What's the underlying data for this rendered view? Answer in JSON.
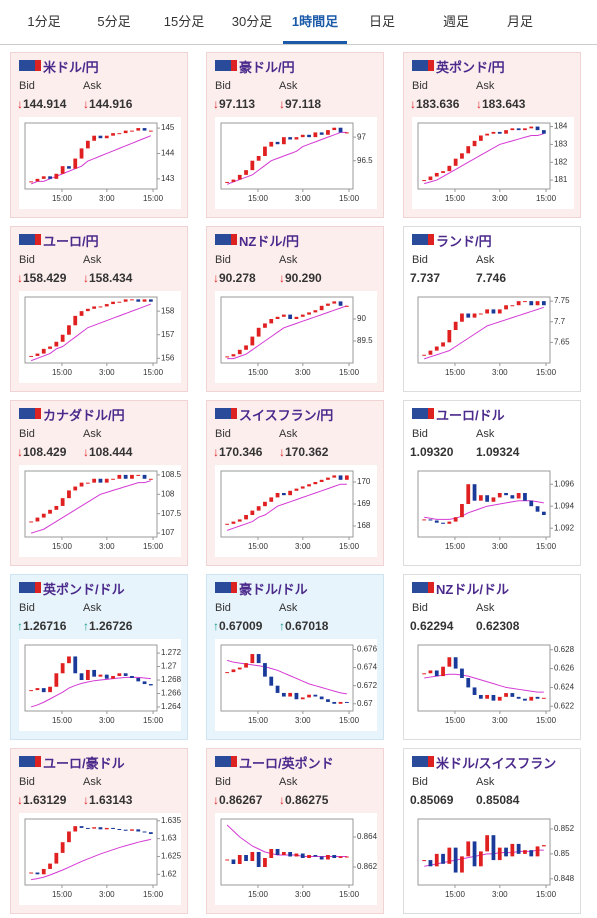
{
  "tabs": [
    "1分足",
    "5分足",
    "15分足",
    "30分足",
    "1時間足",
    "日足",
    "週足",
    "月足"
  ],
  "active_tab": 4,
  "cards": [
    {
      "title": "米ドル/円",
      "bid_label": "Bid",
      "ask_label": "Ask",
      "arrow": "↓",
      "bid": "144.914",
      "ask": "144.916",
      "chart": {
        "ylim": [
          142.6,
          145.2
        ],
        "yticks": [
          143,
          144,
          145
        ],
        "xlabels": [
          "15:00",
          "3:00",
          "15:00"
        ],
        "close": [
          142.9,
          143.0,
          143.1,
          143.0,
          143.2,
          143.5,
          143.4,
          143.8,
          144.2,
          144.5,
          144.7,
          144.6,
          144.7,
          144.8,
          144.8,
          144.9,
          144.9,
          145.0,
          144.9,
          144.9
        ],
        "ma": [
          142.8,
          142.9,
          142.9,
          143.0,
          143.1,
          143.2,
          143.3,
          143.4,
          143.5,
          143.7,
          143.8,
          143.9,
          144.0,
          144.1,
          144.2,
          144.3,
          144.4,
          144.5,
          144.6,
          144.7
        ]
      }
    },
    {
      "title": "豪ドル/円",
      "bid_label": "Bid",
      "ask_label": "Ask",
      "arrow": "↓",
      "bid": "97.113",
      "ask": "97.118",
      "chart": {
        "ylim": [
          95.9,
          97.3
        ],
        "yticks": [
          96.5,
          97
        ],
        "xlabels": [
          "15:00",
          "3:00",
          "15:00"
        ],
        "close": [
          96.05,
          96.1,
          96.2,
          96.3,
          96.5,
          96.6,
          96.8,
          96.9,
          96.85,
          97.0,
          96.95,
          97.0,
          97.05,
          97.0,
          97.1,
          97.05,
          97.15,
          97.2,
          97.1,
          97.1
        ],
        "ma": [
          96.0,
          96.05,
          96.1,
          96.15,
          96.2,
          96.3,
          96.4,
          96.5,
          96.55,
          96.6,
          96.65,
          96.7,
          96.8,
          96.85,
          96.9,
          96.95,
          97.0,
          97.05,
          97.1,
          97.1
        ]
      }
    },
    {
      "title": "英ポンド/円",
      "bid_label": "Bid",
      "ask_label": "Ask",
      "arrow": "↓",
      "bid": "183.636",
      "ask": "183.643",
      "chart": {
        "ylim": [
          180.5,
          184.2
        ],
        "yticks": [
          181,
          182,
          183,
          184
        ],
        "xlabels": [
          "15:00",
          "3:00",
          "15:00"
        ],
        "close": [
          181.0,
          181.2,
          181.4,
          181.5,
          181.8,
          182.2,
          182.5,
          182.9,
          183.2,
          183.5,
          183.6,
          183.7,
          183.6,
          183.8,
          183.9,
          183.8,
          183.9,
          184.0,
          183.8,
          183.6
        ],
        "ma": [
          180.8,
          180.9,
          181.0,
          181.2,
          181.4,
          181.6,
          181.8,
          182.0,
          182.2,
          182.4,
          182.6,
          182.8,
          183.0,
          183.1,
          183.2,
          183.3,
          183.4,
          183.5,
          183.5,
          183.6
        ]
      }
    },
    {
      "title": "ユーロ/円",
      "bid_label": "Bid",
      "ask_label": "Ask",
      "arrow": "↓",
      "bid": "158.429",
      "ask": "158.434",
      "chart": {
        "ylim": [
          155.8,
          158.6
        ],
        "yticks": [
          156,
          157,
          158
        ],
        "xlabels": [
          "15:00",
          "3:00",
          "15:00"
        ],
        "close": [
          156.1,
          156.2,
          156.4,
          156.5,
          156.7,
          157.0,
          157.4,
          157.8,
          158.0,
          158.1,
          158.2,
          158.2,
          158.3,
          158.4,
          158.4,
          158.5,
          158.5,
          158.4,
          158.5,
          158.4
        ],
        "ma": [
          155.9,
          156.0,
          156.1,
          156.2,
          156.4,
          156.5,
          156.7,
          156.9,
          157.1,
          157.3,
          157.4,
          157.5,
          157.6,
          157.7,
          157.8,
          157.9,
          158.0,
          158.1,
          158.2,
          158.3
        ]
      }
    },
    {
      "title": "NZドル/円",
      "bid_label": "Bid",
      "ask_label": "Ask",
      "arrow": "↓",
      "bid": "90.278",
      "ask": "90.290",
      "chart": {
        "ylim": [
          89.0,
          90.5
        ],
        "yticks": [
          89.5,
          90
        ],
        "xlabels": [
          "15:00",
          "3:00",
          "15:00"
        ],
        "close": [
          89.15,
          89.2,
          89.3,
          89.4,
          89.6,
          89.8,
          89.9,
          90.0,
          90.05,
          90.1,
          90.0,
          90.05,
          90.1,
          90.15,
          90.2,
          90.3,
          90.35,
          90.4,
          90.3,
          90.3
        ],
        "ma": [
          89.1,
          89.1,
          89.15,
          89.2,
          89.3,
          89.4,
          89.5,
          89.6,
          89.7,
          89.8,
          89.85,
          89.9,
          89.95,
          90.0,
          90.05,
          90.1,
          90.15,
          90.2,
          90.25,
          90.3
        ]
      }
    },
    {
      "title": "ランド/円",
      "bid_label": "Bid",
      "ask_label": "Ask",
      "bid": "7.737",
      "ask": "7.746",
      "chart": {
        "ylim": [
          7.6,
          7.76
        ],
        "yticks": [
          7.65,
          7.7,
          7.75
        ],
        "xlabels": [
          "15:00",
          "3:00",
          "15:00"
        ],
        "close": [
          7.62,
          7.63,
          7.64,
          7.65,
          7.68,
          7.7,
          7.72,
          7.71,
          7.72,
          7.72,
          7.73,
          7.72,
          7.73,
          7.74,
          7.74,
          7.75,
          7.75,
          7.74,
          7.75,
          7.74
        ],
        "ma": [
          7.61,
          7.615,
          7.62,
          7.625,
          7.63,
          7.64,
          7.65,
          7.66,
          7.67,
          7.68,
          7.69,
          7.695,
          7.7,
          7.705,
          7.71,
          7.715,
          7.72,
          7.725,
          7.73,
          7.735
        ]
      }
    },
    {
      "title": "カナダドル/円",
      "bid_label": "Bid",
      "ask_label": "Ask",
      "arrow": "↓",
      "bid": "108.429",
      "ask": "108.444",
      "chart": {
        "ylim": [
          106.9,
          108.6
        ],
        "yticks": [
          107,
          107.5,
          108,
          108.5
        ],
        "xlabels": [
          "15:00",
          "3:00",
          "15:00"
        ],
        "close": [
          107.3,
          107.4,
          107.5,
          107.6,
          107.7,
          107.9,
          108.1,
          108.2,
          108.3,
          108.3,
          108.4,
          108.3,
          108.4,
          108.4,
          108.5,
          108.4,
          108.5,
          108.5,
          108.4,
          108.4
        ],
        "ma": [
          107.0,
          107.05,
          107.1,
          107.2,
          107.3,
          107.4,
          107.5,
          107.6,
          107.7,
          107.8,
          107.9,
          108.0,
          108.05,
          108.1,
          108.15,
          108.2,
          108.25,
          108.3,
          108.3,
          108.35
        ]
      }
    },
    {
      "title": "スイスフラン/円",
      "bid_label": "Bid",
      "ask_label": "Ask",
      "arrow": "↓",
      "bid": "170.346",
      "ask": "170.362",
      "chart": {
        "ylim": [
          167.5,
          170.5
        ],
        "yticks": [
          168,
          169,
          170
        ],
        "xlabels": [
          "15:00",
          "3:00",
          "15:00"
        ],
        "close": [
          168.1,
          168.2,
          168.3,
          168.5,
          168.7,
          168.9,
          169.1,
          169.3,
          169.5,
          169.4,
          169.6,
          169.7,
          169.8,
          169.9,
          170.0,
          170.1,
          170.2,
          170.3,
          170.1,
          170.3
        ],
        "ma": [
          167.8,
          167.9,
          168.0,
          168.1,
          168.2,
          168.4,
          168.5,
          168.7,
          168.9,
          169.0,
          169.1,
          169.2,
          169.3,
          169.4,
          169.5,
          169.6,
          169.7,
          169.8,
          169.9,
          169.9
        ]
      }
    },
    {
      "title": "ユーロ/ドル",
      "bid_label": "Bid",
      "ask_label": "Ask",
      "bid": "1.09320",
      "ask": "1.09324",
      "chart": {
        "ylim": [
          1.0912,
          1.0972
        ],
        "yticks": [
          1.092,
          1.094,
          1.096
        ],
        "xlabels": [
          "15:00",
          "3:00",
          "15:00"
        ],
        "close": [
          1.0928,
          1.0927,
          1.0925,
          1.0924,
          1.0926,
          1.093,
          1.0942,
          1.096,
          1.0945,
          1.095,
          1.0944,
          1.0948,
          1.0952,
          1.095,
          1.0947,
          1.0952,
          1.0945,
          1.094,
          1.0935,
          1.0932
        ],
        "ma": [
          1.093,
          1.0929,
          1.0928,
          1.0928,
          1.0928,
          1.0929,
          1.0931,
          1.0934,
          1.0936,
          1.0938,
          1.094,
          1.0941,
          1.0942,
          1.0943,
          1.0944,
          1.0945,
          1.0945,
          1.0945,
          1.0944,
          1.0943
        ]
      }
    },
    {
      "title": "英ポンド/ドル",
      "bid_label": "Bid",
      "ask_label": "Ask",
      "arrow": "↑",
      "bid": "1.26716",
      "ask": "1.26726",
      "chart": {
        "ylim": [
          1.2634,
          1.2732
        ],
        "yticks": [
          1.264,
          1.266,
          1.268,
          1.27,
          1.272
        ],
        "xlabels": [
          "15:00",
          "3:00",
          "15:00"
        ],
        "close": [
          1.2665,
          1.2668,
          1.2662,
          1.267,
          1.269,
          1.2705,
          1.2715,
          1.269,
          1.268,
          1.2695,
          1.2685,
          1.2688,
          1.2682,
          1.2686,
          1.269,
          1.2686,
          1.2683,
          1.2678,
          1.2674,
          1.2672
        ],
        "ma": [
          1.264,
          1.2643,
          1.2647,
          1.2652,
          1.2657,
          1.2662,
          1.2668,
          1.2672,
          1.2675,
          1.2677,
          1.2679,
          1.268,
          1.2681,
          1.2682,
          1.2683,
          1.2684,
          1.2684,
          1.2684,
          1.2683,
          1.2682
        ]
      }
    },
    {
      "title": "豪ドル/ドル",
      "bid_label": "Bid",
      "ask_label": "Ask",
      "arrow": "↑",
      "bid": "0.67009",
      "ask": "0.67018",
      "chart": {
        "ylim": [
          0.6692,
          0.6765
        ],
        "yticks": [
          0.67,
          0.672,
          0.674,
          0.676
        ],
        "xlabels": [
          "15:00",
          "3:00",
          "15:00"
        ],
        "close": [
          0.6735,
          0.6738,
          0.674,
          0.6745,
          0.6755,
          0.6745,
          0.673,
          0.672,
          0.6712,
          0.6708,
          0.6712,
          0.6705,
          0.6707,
          0.671,
          0.6708,
          0.6705,
          0.6702,
          0.67,
          0.6702,
          0.6701
        ],
        "ma": [
          0.6748,
          0.6746,
          0.6745,
          0.6744,
          0.6743,
          0.6742,
          0.6741,
          0.6739,
          0.6737,
          0.6734,
          0.6731,
          0.6728,
          0.6725,
          0.6722,
          0.672,
          0.6718,
          0.6716,
          0.6714,
          0.6712,
          0.6711
        ]
      }
    },
    {
      "title": "NZドル/ドル",
      "bid_label": "Bid",
      "ask_label": "Ask",
      "bid": "0.62294",
      "ask": "0.62308",
      "chart": {
        "ylim": [
          0.6215,
          0.6285
        ],
        "yticks": [
          0.622,
          0.624,
          0.626,
          0.628
        ],
        "xlabels": [
          "15:00",
          "3:00",
          "15:00"
        ],
        "close": [
          0.6255,
          0.6258,
          0.6252,
          0.6262,
          0.6272,
          0.626,
          0.625,
          0.624,
          0.6232,
          0.6228,
          0.6232,
          0.6226,
          0.623,
          0.6234,
          0.623,
          0.6228,
          0.6226,
          0.623,
          0.6228,
          0.6229
        ],
        "ma": [
          0.625,
          0.6251,
          0.6252,
          0.6253,
          0.6254,
          0.6254,
          0.6253,
          0.6252,
          0.625,
          0.6248,
          0.6246,
          0.6244,
          0.6242,
          0.624,
          0.6239,
          0.6238,
          0.6237,
          0.6236,
          0.6235,
          0.6235
        ]
      }
    },
    {
      "title": "ユーロ/豪ドル",
      "bid_label": "Bid",
      "ask_label": "Ask",
      "arrow": "↓",
      "bid": "1.63129",
      "ask": "1.63143",
      "chart": {
        "ylim": [
          1.617,
          1.6355
        ],
        "yticks": [
          1.62,
          1.625,
          1.63,
          1.635
        ],
        "xlabels": [
          "15:00",
          "3:00",
          "15:00"
        ],
        "close": [
          1.6205,
          1.62,
          1.6215,
          1.623,
          1.626,
          1.629,
          1.632,
          1.6335,
          1.633,
          1.6328,
          1.6332,
          1.6326,
          1.633,
          1.6327,
          1.6325,
          1.6322,
          1.6326,
          1.632,
          1.6318,
          1.6313
        ],
        "ma": [
          1.6185,
          1.6188,
          1.6192,
          1.6198,
          1.6205,
          1.6212,
          1.622,
          1.6228,
          1.6236,
          1.6243,
          1.625,
          1.6257,
          1.6263,
          1.6269,
          1.6275,
          1.628,
          1.6285,
          1.629,
          1.6294,
          1.6298
        ]
      }
    },
    {
      "title": "ユーロ/英ポンド",
      "bid_label": "Bid",
      "ask_label": "Ask",
      "arrow": "↓",
      "bid": "0.86267",
      "ask": "0.86275",
      "chart": {
        "ylim": [
          0.8608,
          0.8652
        ],
        "yticks": [
          0.862,
          0.864
        ],
        "xlabels": [
          "15:00",
          "3:00",
          "15:00"
        ],
        "close": [
          0.8625,
          0.8622,
          0.8628,
          0.8624,
          0.863,
          0.862,
          0.8626,
          0.8632,
          0.8628,
          0.863,
          0.8627,
          0.8629,
          0.8626,
          0.8628,
          0.8627,
          0.8625,
          0.8628,
          0.8626,
          0.8627,
          0.8627
        ],
        "ma": [
          0.8648,
          0.8644,
          0.864,
          0.8637,
          0.8634,
          0.8632,
          0.863,
          0.8629,
          0.8628,
          0.8628,
          0.8628,
          0.8628,
          0.8627,
          0.8627,
          0.8627,
          0.8627,
          0.8627,
          0.8627,
          0.8627,
          0.8627
        ]
      }
    },
    {
      "title": "米ドル/スイスフラン",
      "bid_label": "Bid",
      "ask_label": "Ask",
      "bid": "0.85069",
      "ask": "0.85084",
      "chart": {
        "ylim": [
          0.8475,
          0.8528
        ],
        "yticks": [
          0.848,
          0.85,
          0.852
        ],
        "xlabels": [
          "15:00",
          "3:00",
          "15:00"
        ],
        "close": [
          0.8495,
          0.849,
          0.85,
          0.8492,
          0.8505,
          0.8485,
          0.8498,
          0.851,
          0.849,
          0.8502,
          0.8515,
          0.8495,
          0.8505,
          0.8498,
          0.8508,
          0.85,
          0.8503,
          0.8498,
          0.8506,
          0.8507
        ],
        "ma": [
          0.849,
          0.8491,
          0.8492,
          0.8493,
          0.8494,
          0.8495,
          0.8496,
          0.8497,
          0.8498,
          0.8499,
          0.85,
          0.85,
          0.8501,
          0.8501,
          0.8501,
          0.8502,
          0.8502,
          0.8502,
          0.8503,
          0.8503
        ]
      }
    }
  ]
}
